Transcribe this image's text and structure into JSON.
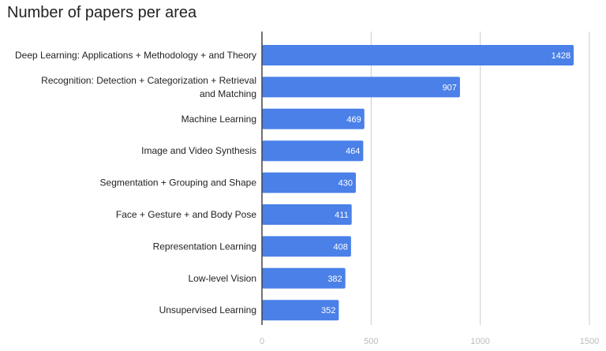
{
  "chart_data": {
    "type": "bar",
    "orientation": "horizontal",
    "title": "Number of papers per area",
    "xlabel": "",
    "ylabel": "",
    "categories": [
      "Deep Learning: Applications + Methodology + and Theory",
      "Recognition: Detection + Categorization + Retrieval and Matching",
      "Machine Learning",
      "Image and Video Synthesis",
      "Segmentation + Grouping and Shape",
      "Face + Gesture + and Body Pose",
      "Representation Learning",
      "Low-level Vision",
      "Unsupervised Learning"
    ],
    "values": [
      1428,
      907,
      469,
      464,
      430,
      411,
      408,
      382,
      352
    ],
    "xlim": [
      0,
      1500
    ],
    "xticks": [
      0,
      500,
      1000,
      1500
    ],
    "grid": true,
    "legend": "none",
    "data_labels": true,
    "bar_color": "#4a80e8",
    "label_color": "#ffffff",
    "grid_color": "#cccccc",
    "axis_color": "#444444"
  }
}
